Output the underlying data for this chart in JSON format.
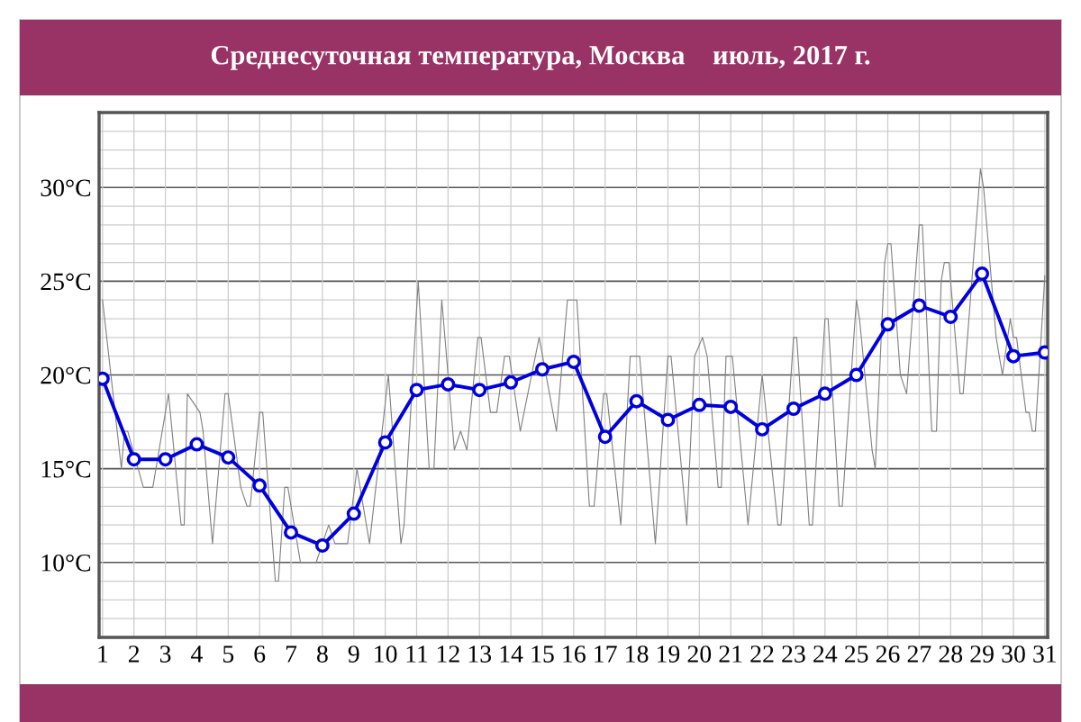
{
  "chart_data": {
    "type": "line",
    "title": "Среднесуточная температура, Москва    июль, 2017 г.",
    "x": [
      1,
      2,
      3,
      4,
      5,
      6,
      7,
      8,
      9,
      10,
      11,
      12,
      13,
      14,
      15,
      16,
      17,
      18,
      19,
      20,
      21,
      22,
      23,
      24,
      25,
      26,
      27,
      28,
      29,
      30,
      31
    ],
    "xticks": [
      1,
      2,
      3,
      4,
      5,
      6,
      7,
      8,
      9,
      10,
      11,
      12,
      13,
      14,
      15,
      16,
      17,
      18,
      19,
      20,
      21,
      22,
      23,
      24,
      25,
      26,
      27,
      28,
      29,
      30,
      31
    ],
    "series": [
      {
        "color": "#808080",
        "marker": "none",
        "x": [
          1.0,
          1.6,
          1.7,
          1.8,
          2.3,
          2.6,
          3.1,
          3.5,
          3.6,
          3.7,
          4.1,
          4.2,
          4.5,
          4.9,
          5.0,
          5.4,
          5.6,
          5.7,
          6.0,
          6.1,
          6.5,
          6.6,
          6.8,
          6.9,
          7.3,
          7.8,
          8.2,
          8.4,
          8.8,
          9.1,
          9.5,
          10.1,
          10.5,
          10.6,
          11.05,
          11.4,
          11.55,
          11.8,
          12.2,
          12.4,
          12.6,
          12.95,
          13.05,
          13.35,
          13.55,
          13.8,
          13.95,
          14.3,
          14.9,
          15.45,
          15.8,
          16.1,
          16.5,
          16.65,
          16.95,
          17.05,
          17.5,
          17.8,
          18.1,
          18.6,
          19.0,
          19.1,
          19.6,
          19.85,
          20.1,
          20.25,
          20.6,
          20.7,
          20.85,
          21.05,
          21.55,
          22.0,
          22.5,
          22.6,
          23.0,
          23.1,
          23.5,
          23.6,
          24.0,
          24.1,
          24.45,
          24.55,
          25.0,
          25.1,
          25.5,
          25.6,
          25.9,
          26.0,
          26.1,
          26.4,
          26.6,
          27.0,
          27.1,
          27.4,
          27.55,
          27.7,
          27.8,
          27.95,
          28.3,
          28.4,
          28.95,
          29.05,
          29.45,
          29.65,
          29.9,
          30.0,
          30.1,
          30.4,
          30.5,
          30.6,
          30.7,
          31.0
        ],
        "values": [
          24,
          15,
          17,
          17,
          14,
          14,
          19,
          12,
          12,
          19,
          18,
          17,
          11,
          19,
          19,
          14,
          13,
          13,
          18,
          18,
          9,
          9,
          14,
          14,
          10,
          10,
          12,
          11,
          11,
          15,
          11,
          20,
          11,
          12,
          25,
          15,
          15,
          24,
          16,
          17,
          16,
          22,
          22,
          18,
          18,
          21,
          21,
          17,
          22,
          17,
          24,
          24,
          13,
          13,
          19,
          19,
          12,
          21,
          21,
          11,
          21,
          21,
          12,
          21,
          22,
          21,
          14,
          14,
          21,
          21,
          12,
          20,
          12,
          12,
          22,
          22,
          12,
          12,
          23,
          23,
          13,
          13,
          24,
          23,
          16,
          15,
          26,
          27,
          27,
          20,
          19,
          28,
          28,
          17,
          17,
          25,
          26,
          26,
          19,
          19,
          31,
          30,
          22,
          20,
          23,
          22,
          22,
          18,
          18,
          17,
          17,
          25.3
        ]
      },
      {
        "color": "#0000dd",
        "marker": "circle",
        "values": [
          19.8,
          15.5,
          15.5,
          16.3,
          15.6,
          14.1,
          11.6,
          10.9,
          12.6,
          16.4,
          19.2,
          19.5,
          19.2,
          19.6,
          20.3,
          20.7,
          16.7,
          18.6,
          17.6,
          18.4,
          18.3,
          17.1,
          18.2,
          19.0,
          20.0,
          22.7,
          23.7,
          23.1,
          25.4,
          21.0,
          21.2
        ]
      }
    ],
    "xlim": [
      0.89,
      31.09
    ],
    "ylim": [
      6,
      34
    ],
    "yticks": [
      {
        "value": 6,
        "label": null
      },
      {
        "value": 7,
        "label": null
      },
      {
        "value": 8,
        "label": null
      },
      {
        "value": 9,
        "label": null
      },
      {
        "value": 10,
        "label": "10°C"
      },
      {
        "value": 11,
        "label": null
      },
      {
        "value": 12,
        "label": null
      },
      {
        "value": 13,
        "label": null
      },
      {
        "value": 14,
        "label": null
      },
      {
        "value": 15,
        "label": "15°C"
      },
      {
        "value": 16,
        "label": null
      },
      {
        "value": 17,
        "label": null
      },
      {
        "value": 18,
        "label": null
      },
      {
        "value": 19,
        "label": null
      },
      {
        "value": 20,
        "label": "20°C"
      },
      {
        "value": 21,
        "label": null
      },
      {
        "value": 22,
        "label": null
      },
      {
        "value": 23,
        "label": null
      },
      {
        "value": 24,
        "label": null
      },
      {
        "value": 25,
        "label": "25°C"
      },
      {
        "value": 26,
        "label": null
      },
      {
        "value": 27,
        "label": null
      },
      {
        "value": 28,
        "label": null
      },
      {
        "value": 29,
        "label": null
      },
      {
        "value": 30,
        "label": "30°C"
      },
      {
        "value": 31,
        "label": null
      },
      {
        "value": 32,
        "label": null
      },
      {
        "value": 33,
        "label": null
      }
    ],
    "grid": true
  }
}
